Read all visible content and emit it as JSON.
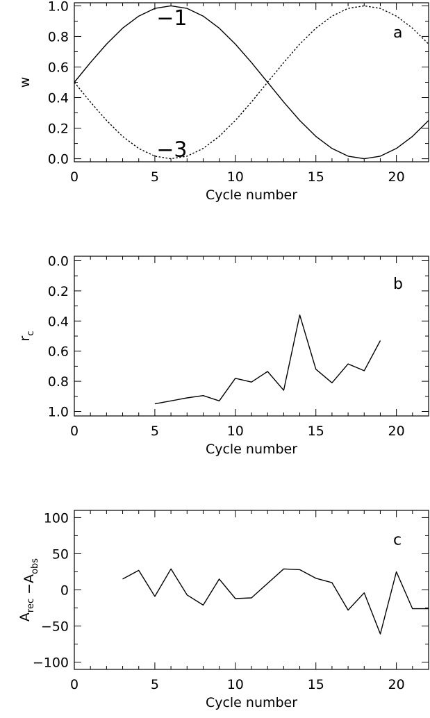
{
  "chart_data": [
    {
      "panel": "a",
      "type": "line",
      "title": "",
      "xlabel": "Cycle number",
      "ylabel": "w",
      "xlim": [
        0,
        22
      ],
      "ylim": [
        -0.02,
        1.02
      ],
      "xticks": [
        0,
        5,
        10,
        15,
        20
      ],
      "xtick_labels": [
        "0",
        "5",
        "10",
        "15",
        "20"
      ],
      "yticks": [
        0.0,
        0.2,
        0.4,
        0.6,
        0.8,
        1.0
      ],
      "ytick_labels": [
        "0.0",
        "0.2",
        "0.4",
        "0.6",
        "0.8",
        "1.0"
      ],
      "grid": false,
      "annotations": [
        {
          "text": "a",
          "x": 19.8,
          "y": 0.83
        },
        {
          "text": "−1",
          "x": 5.1,
          "y": 0.92
        },
        {
          "text": "−3",
          "x": 5.1,
          "y": 0.06
        }
      ],
      "series": [
        {
          "style": "solid",
          "x": [
            0,
            1,
            2,
            3,
            4,
            5,
            6,
            7,
            8,
            9,
            10,
            11,
            12,
            13,
            14,
            15,
            16,
            17,
            18,
            19,
            20,
            21,
            22
          ],
          "y": [
            0.5,
            0.629,
            0.75,
            0.854,
            0.933,
            0.983,
            1.0,
            0.983,
            0.933,
            0.854,
            0.75,
            0.629,
            0.5,
            0.371,
            0.25,
            0.146,
            0.067,
            0.017,
            0.0,
            0.017,
            0.067,
            0.146,
            0.25
          ]
        },
        {
          "style": "dotted",
          "x": [
            0,
            1,
            2,
            3,
            4,
            5,
            6,
            7,
            8,
            9,
            10,
            11,
            12,
            13,
            14,
            15,
            16,
            17,
            18,
            19,
            20,
            21,
            22
          ],
          "y": [
            0.5,
            0.371,
            0.25,
            0.146,
            0.067,
            0.017,
            0.0,
            0.017,
            0.067,
            0.146,
            0.25,
            0.371,
            0.5,
            0.629,
            0.75,
            0.854,
            0.933,
            0.983,
            1.0,
            0.983,
            0.933,
            0.854,
            0.75
          ]
        }
      ]
    },
    {
      "panel": "b",
      "type": "line",
      "title": "",
      "xlabel": "Cycle number",
      "ylabel": "r",
      "ylabel_sub": "c",
      "xlim": [
        0,
        22
      ],
      "ylim": [
        1.03,
        -0.03
      ],
      "y_inverted": true,
      "xticks": [
        0,
        5,
        10,
        15,
        20
      ],
      "xtick_labels": [
        "0",
        "5",
        "10",
        "15",
        "20"
      ],
      "yticks": [
        0.0,
        0.2,
        0.4,
        0.6,
        0.8,
        1.0
      ],
      "ytick_labels": [
        "0.0",
        "0.2",
        "0.4",
        "0.6",
        "0.8",
        "1.0"
      ],
      "grid": false,
      "annotations": [
        {
          "text": "b",
          "x": 19.8,
          "y": 0.15
        }
      ],
      "series": [
        {
          "style": "solid",
          "x": [
            5,
            6,
            7,
            8,
            9,
            10,
            11,
            12,
            13,
            14,
            15,
            16,
            17,
            18,
            19
          ],
          "y": [
            0.95,
            0.93,
            0.91,
            0.895,
            0.93,
            0.78,
            0.805,
            0.735,
            0.86,
            0.36,
            0.72,
            0.81,
            0.685,
            0.73,
            0.53
          ]
        }
      ]
    },
    {
      "panel": "c",
      "type": "line",
      "title": "",
      "xlabel": "Cycle number",
      "ylabel_parts": [
        {
          "text": "A",
          "sub": "rec"
        },
        {
          "text": " −A",
          "sub": "obs"
        }
      ],
      "xlim": [
        0,
        22
      ],
      "ylim": [
        -110,
        110
      ],
      "xticks": [
        0,
        5,
        10,
        15,
        20
      ],
      "xtick_labels": [
        "0",
        "5",
        "10",
        "15",
        "20"
      ],
      "yticks": [
        -100,
        -50,
        0,
        50,
        100
      ],
      "ytick_labels": [
        "−100",
        "−50",
        "0",
        "50",
        "100"
      ],
      "grid": false,
      "annotations": [
        {
          "text": "c",
          "x": 19.8,
          "y": 70
        }
      ],
      "series": [
        {
          "style": "solid",
          "x": [
            3,
            4,
            5,
            6,
            7,
            8,
            9,
            10,
            11,
            12,
            13,
            14,
            15,
            16,
            17,
            18,
            19,
            20,
            21,
            22
          ],
          "y": [
            15,
            27,
            -9,
            29,
            -7,
            -21,
            15,
            -12,
            -11,
            9,
            29,
            28,
            16,
            10,
            -28,
            -4,
            -61,
            25,
            -26,
            -26
          ]
        }
      ]
    }
  ]
}
